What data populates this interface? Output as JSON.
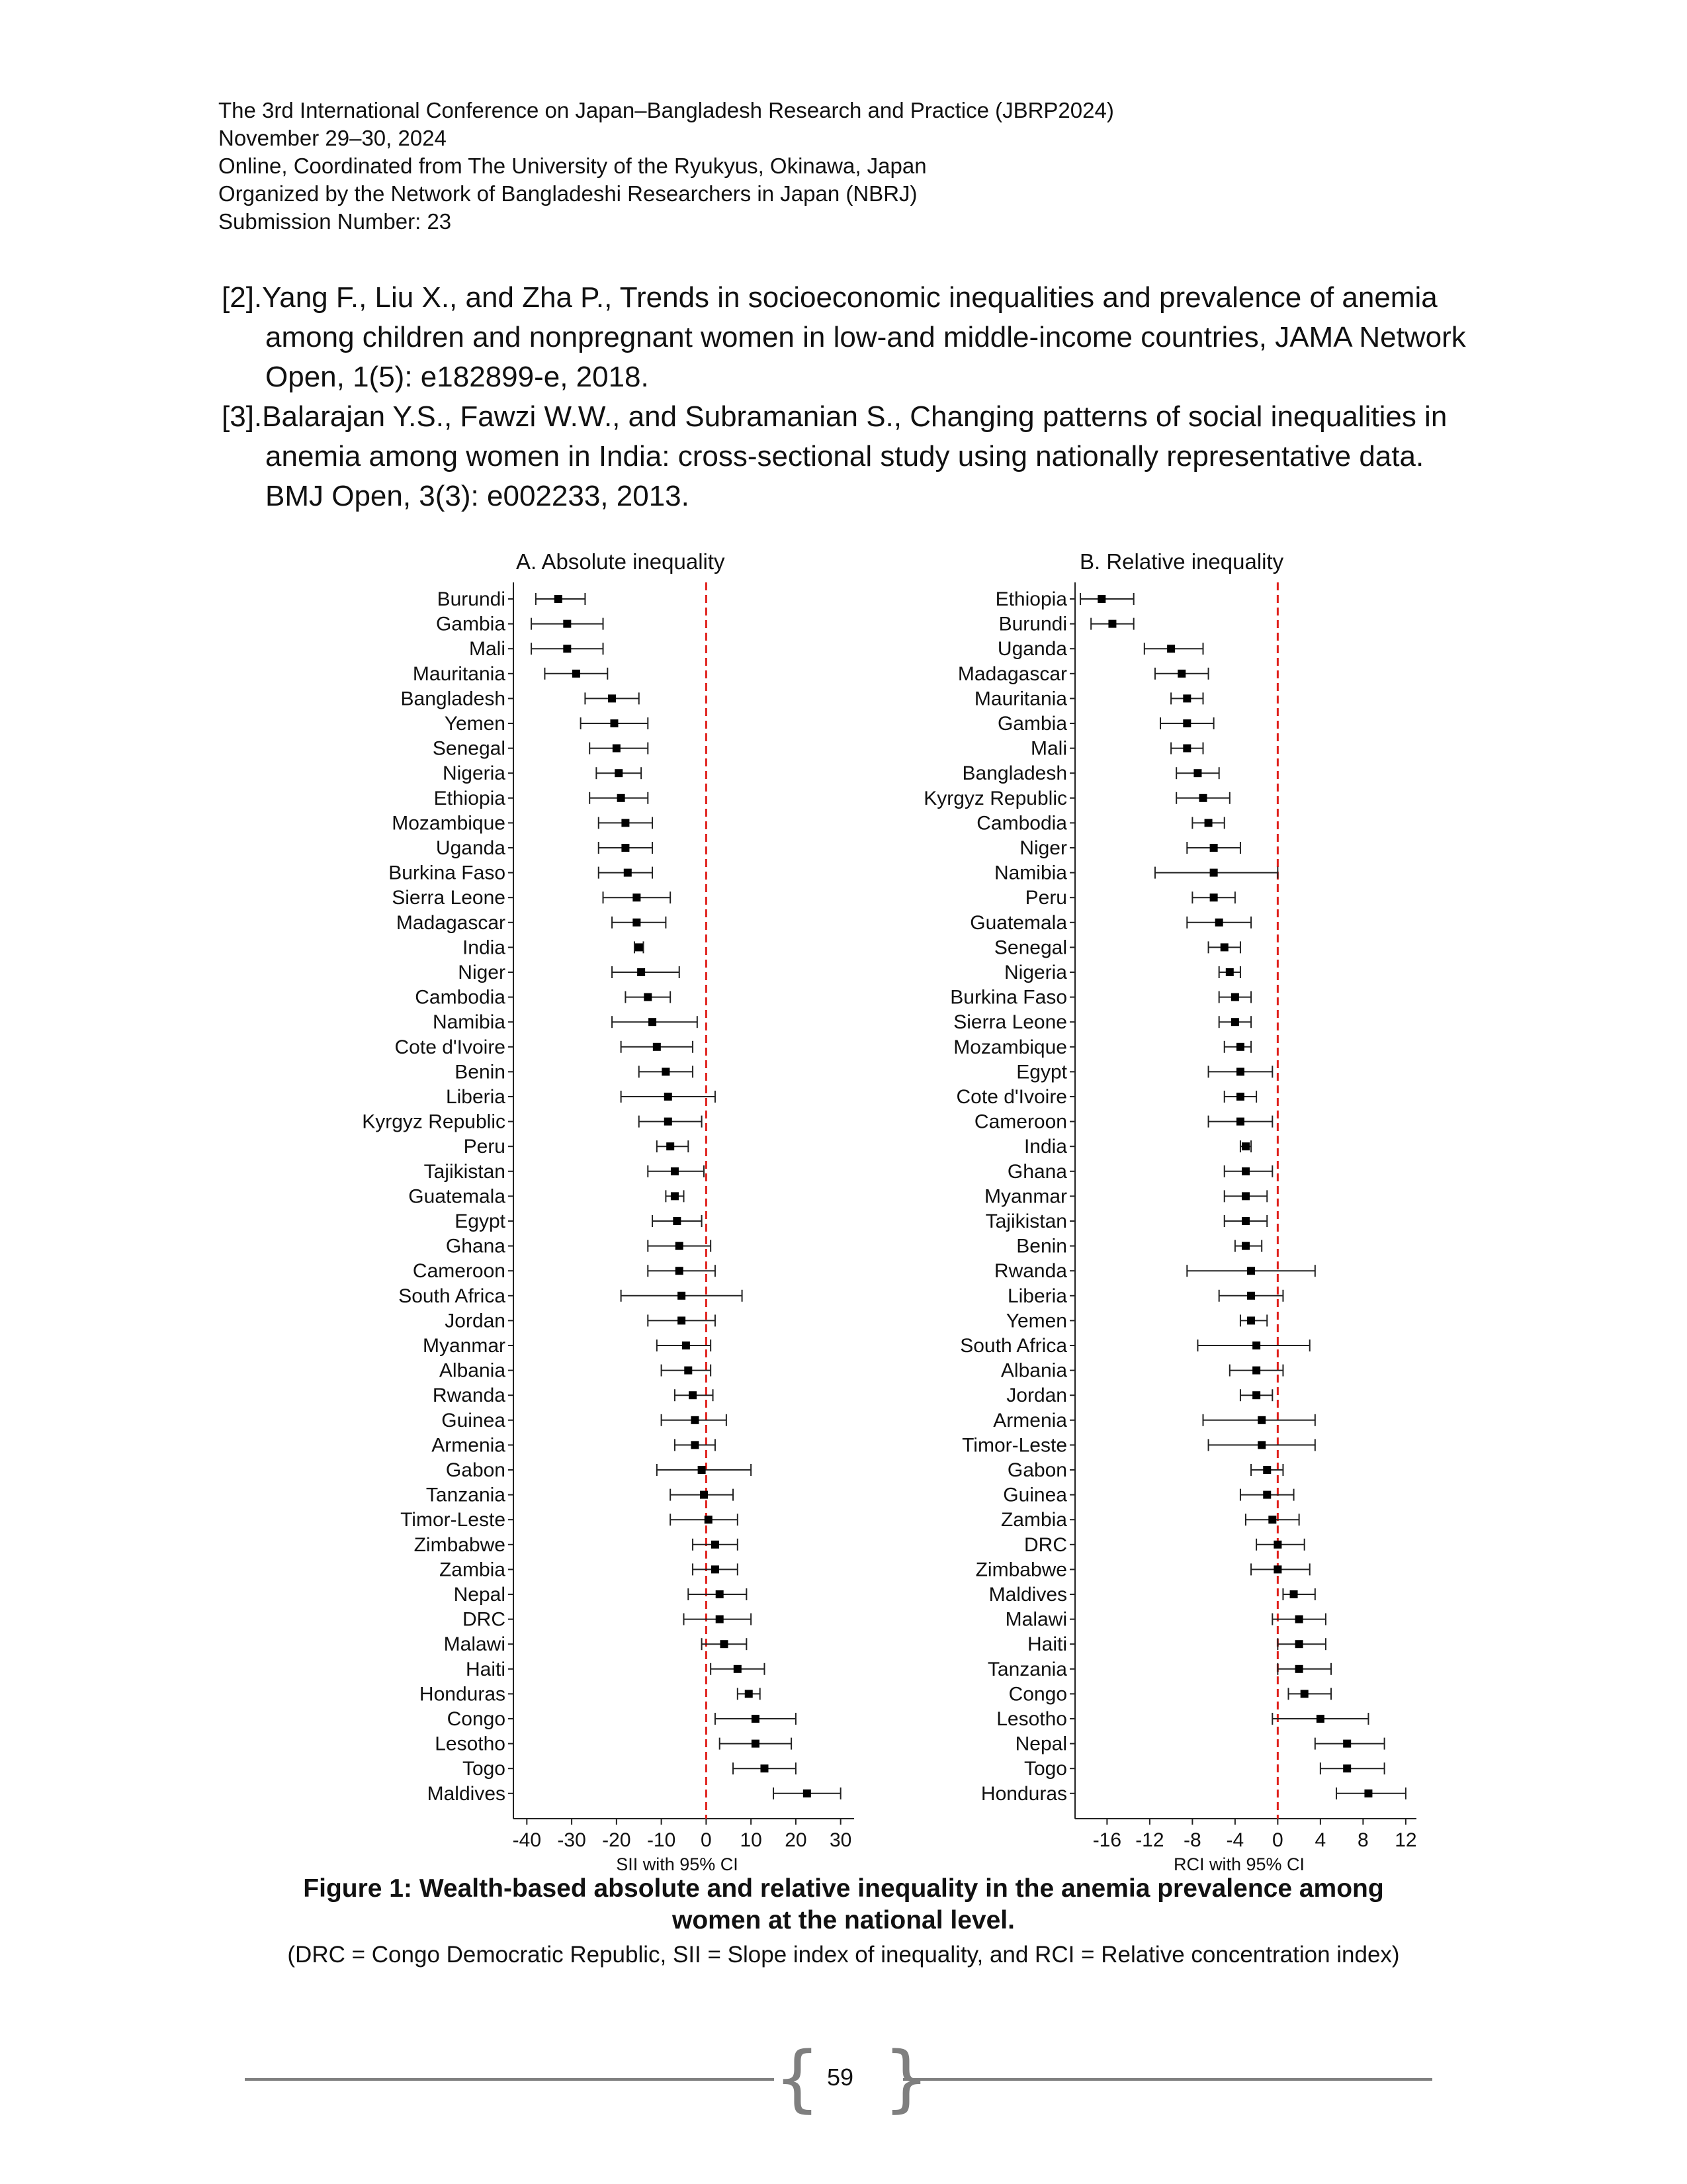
{
  "header": {
    "lines": [
      "The 3rd International Conference on Japan–Bangladesh Research and Practice (JBRP2024)",
      "November 29–30, 2024",
      "Online, Coordinated from The University of the Ryukyus, Okinawa, Japan",
      "Organized by the Network of Bangladeshi Researchers in Japan (NBRJ)",
      "Submission Number: 23"
    ]
  },
  "references": [
    "[2].Yang F., Liu X., and Zha P., Trends in socioeconomic inequalities and prevalence of anemia among children and nonpregnant women in low-and middle-income countries, JAMA Network Open, 1(5): e182899-e, 2018.",
    "[3].Balarajan Y.S., Fawzi W.W., and Subramanian S., Changing patterns of social inequalities in anemia among women in India: cross-sectional study using nationally representative data. BMJ Open, 3(3): e002233, 2013."
  ],
  "chart_data": [
    {
      "type": "scatter",
      "title": "A. Absolute inequality",
      "xlabel": "SII with 95% CI",
      "ylabel": "",
      "xlim": [
        -43,
        33
      ],
      "xticks": [
        -40,
        -30,
        -20,
        -10,
        0,
        10,
        20,
        30
      ],
      "reference_line": 0,
      "categories": [
        "Burundi",
        "Gambia",
        "Mali",
        "Mauritania",
        "Bangladesh",
        "Yemen",
        "Senegal",
        "Nigeria",
        "Ethiopia",
        "Mozambique",
        "Uganda",
        "Burkina Faso",
        "Sierra Leone",
        "Madagascar",
        "India",
        "Niger",
        "Cambodia",
        "Namibia",
        "Cote d'Ivoire",
        "Benin",
        "Liberia",
        "Kyrgyz Republic",
        "Peru",
        "Tajikistan",
        "Guatemala",
        "Egypt",
        "Ghana",
        "Cameroon",
        "South Africa",
        "Jordan",
        "Myanmar",
        "Albania",
        "Rwanda",
        "Guinea",
        "Armenia",
        "Gabon",
        "Tanzania",
        "Timor-Leste",
        "Zimbabwe",
        "Zambia",
        "Nepal",
        "DRC",
        "Malawi",
        "Haiti",
        "Honduras",
        "Congo",
        "Lesotho",
        "Togo",
        "Maldives"
      ],
      "estimate": [
        -33,
        -31,
        -31,
        -29,
        -21,
        -20.5,
        -20,
        -19.5,
        -19,
        -18,
        -18,
        -17.5,
        -15.5,
        -15.5,
        -15,
        -14.5,
        -13,
        -12,
        -11,
        -9,
        -8.5,
        -8.5,
        -8,
        -7,
        -7,
        -6.5,
        -6,
        -6,
        -5.5,
        -5.5,
        -4.5,
        -4,
        -3,
        -2.5,
        -2.5,
        -1,
        -0.5,
        0.5,
        2,
        2,
        3,
        3,
        4,
        7,
        9.5,
        11,
        11,
        13,
        22.5
      ],
      "ci_low": [
        -38,
        -39,
        -39,
        -36,
        -27,
        -28,
        -26,
        -24.5,
        -26,
        -24,
        -24,
        -24,
        -23,
        -21,
        -16,
        -21,
        -18,
        -21,
        -19,
        -15,
        -19,
        -15,
        -11,
        -13,
        -9,
        -12,
        -13,
        -13,
        -19,
        -13,
        -11,
        -10,
        -7,
        -10,
        -7,
        -11,
        -8,
        -8,
        -3,
        -3,
        -4,
        -5,
        -1,
        1,
        7,
        2,
        3,
        6,
        15
      ],
      "ci_high": [
        -27,
        -23,
        -23,
        -22,
        -15,
        -13,
        -13,
        -14.5,
        -13,
        -12,
        -12,
        -12,
        -8,
        -9,
        -14,
        -6,
        -8,
        -2,
        -3,
        -3,
        2,
        -1,
        -4,
        -0.5,
        -5,
        -1,
        1,
        2,
        8,
        2,
        1,
        1,
        1.5,
        4.5,
        2,
        10,
        6,
        7,
        7,
        7,
        9,
        10,
        9,
        13,
        12,
        20,
        19,
        20,
        30
      ]
    },
    {
      "type": "scatter",
      "title": "B. Relative inequality",
      "xlabel": "RCI with 95% CI",
      "ylabel": "",
      "xlim": [
        -19,
        13
      ],
      "xticks": [
        -16,
        -12,
        -8,
        -4,
        0,
        4,
        8,
        12
      ],
      "reference_line": 0,
      "categories": [
        "Ethiopia",
        "Burundi",
        "Uganda",
        "Madagascar",
        "Mauritania",
        "Gambia",
        "Mali",
        "Bangladesh",
        "Kyrgyz Republic",
        "Cambodia",
        "Niger",
        "Namibia",
        "Peru",
        "Guatemala",
        "Senegal",
        "Nigeria",
        "Burkina Faso",
        "Sierra Leone",
        "Mozambique",
        "Egypt",
        "Cote d'Ivoire",
        "Cameroon",
        "India",
        "Ghana",
        "Myanmar",
        "Tajikistan",
        "Benin",
        "Rwanda",
        "Liberia",
        "Yemen",
        "South Africa",
        "Albania",
        "Jordan",
        "Armenia",
        "Timor-Leste",
        "Gabon",
        "Guinea",
        "Zambia",
        "DRC",
        "Zimbabwe",
        "Maldives",
        "Malawi",
        "Haiti",
        "Tanzania",
        "Congo",
        "Lesotho",
        "Nepal",
        "Togo",
        "Honduras"
      ],
      "estimate": [
        -16.5,
        -15.5,
        -10,
        -9,
        -8.5,
        -8.5,
        -8.5,
        -7.5,
        -7,
        -6.5,
        -6,
        -6,
        -6,
        -5.5,
        -5,
        -4.5,
        -4,
        -4,
        -3.5,
        -3.5,
        -3.5,
        -3.5,
        -3,
        -3,
        -3,
        -3,
        -3,
        -2.5,
        -2.5,
        -2.5,
        -2,
        -2,
        -2,
        -1.5,
        -1.5,
        -1,
        -1,
        -0.5,
        0,
        0,
        1.5,
        2,
        2,
        2,
        2.5,
        4,
        6.5,
        6.5,
        8.5
      ],
      "ci_low": [
        -18.5,
        -17.5,
        -12.5,
        -11.5,
        -10,
        -11,
        -10,
        -9.5,
        -9.5,
        -8,
        -8.5,
        -11.5,
        -8,
        -8.5,
        -6.5,
        -5.5,
        -5.5,
        -5.5,
        -5,
        -6.5,
        -5,
        -6.5,
        -3.5,
        -5,
        -5,
        -5,
        -4,
        -8.5,
        -5.5,
        -3.5,
        -7.5,
        -4.5,
        -3.5,
        -7,
        -6.5,
        -2.5,
        -3.5,
        -3,
        -2,
        -2.5,
        0.5,
        -0.5,
        0,
        0,
        1,
        -0.5,
        3.5,
        4,
        5.5
      ],
      "ci_high": [
        -13.5,
        -13.5,
        -7,
        -6.5,
        -7,
        -6,
        -7,
        -5.5,
        -4.5,
        -5,
        -3.5,
        0,
        -4,
        -2.5,
        -3.5,
        -3.5,
        -2.5,
        -2.5,
        -2.5,
        -0.5,
        -2,
        -0.5,
        -2.5,
        -0.5,
        -1,
        -1,
        -1.5,
        3.5,
        0.5,
        -1,
        3,
        0.5,
        -0.5,
        3.5,
        3.5,
        0.5,
        1.5,
        2,
        2.5,
        3,
        3.5,
        4.5,
        4.5,
        5,
        5,
        8.5,
        10,
        10,
        12
      ]
    }
  ],
  "caption": {
    "title_line1": "Figure 1: Wealth-based absolute and relative inequality in the anemia prevalence among",
    "title_line2": "women at the national level.",
    "note": "(DRC = Congo Democratic Republic, SII = Slope index of inequality, and RCI = Relative concentration index)"
  },
  "footer": {
    "page_number": "59"
  }
}
